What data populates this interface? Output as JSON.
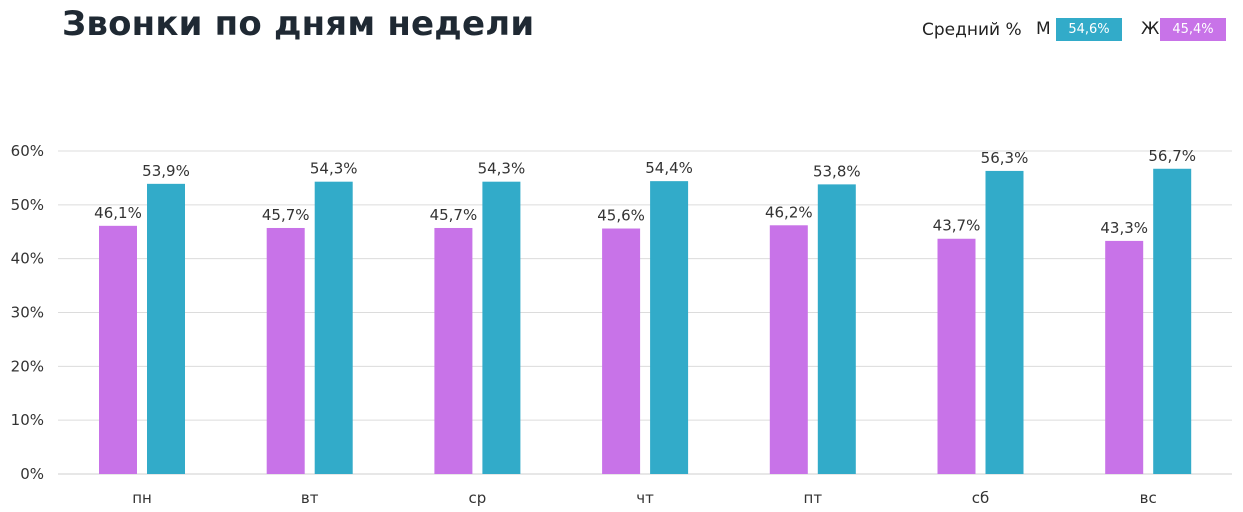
{
  "title": "Звонки по дням недели",
  "legend": {
    "avg_label": "Средний %",
    "male": {
      "key": "М",
      "value": "54,6%",
      "color": "#32abc9"
    },
    "female": {
      "key": "Ж",
      "value": "45,4%",
      "color": "#c873e8"
    }
  },
  "chart_data": {
    "type": "bar",
    "categories": [
      "пн",
      "вт",
      "ср",
      "чт",
      "пт",
      "сб",
      "вс"
    ],
    "series": [
      {
        "color": "#c873e8",
        "values": [
          46.1,
          45.7,
          45.7,
          45.6,
          46.2,
          43.7,
          43.3
        ],
        "labels": [
          "46,1%",
          "45,7%",
          "45,7%",
          "45,6%",
          "46,2%",
          "43,7%",
          "43,3%"
        ]
      },
      {
        "color": "#32abc9",
        "values": [
          53.9,
          54.3,
          54.3,
          54.4,
          53.8,
          56.3,
          56.7
        ],
        "labels": [
          "53,9%",
          "54,3%",
          "54,3%",
          "54,4%",
          "53,8%",
          "56,3%",
          "56,7%"
        ]
      }
    ],
    "yticks": [
      "0%",
      "10%",
      "20%",
      "30%",
      "40%",
      "50%",
      "60%"
    ],
    "ylim": [
      0,
      60
    ],
    "grid": true
  }
}
